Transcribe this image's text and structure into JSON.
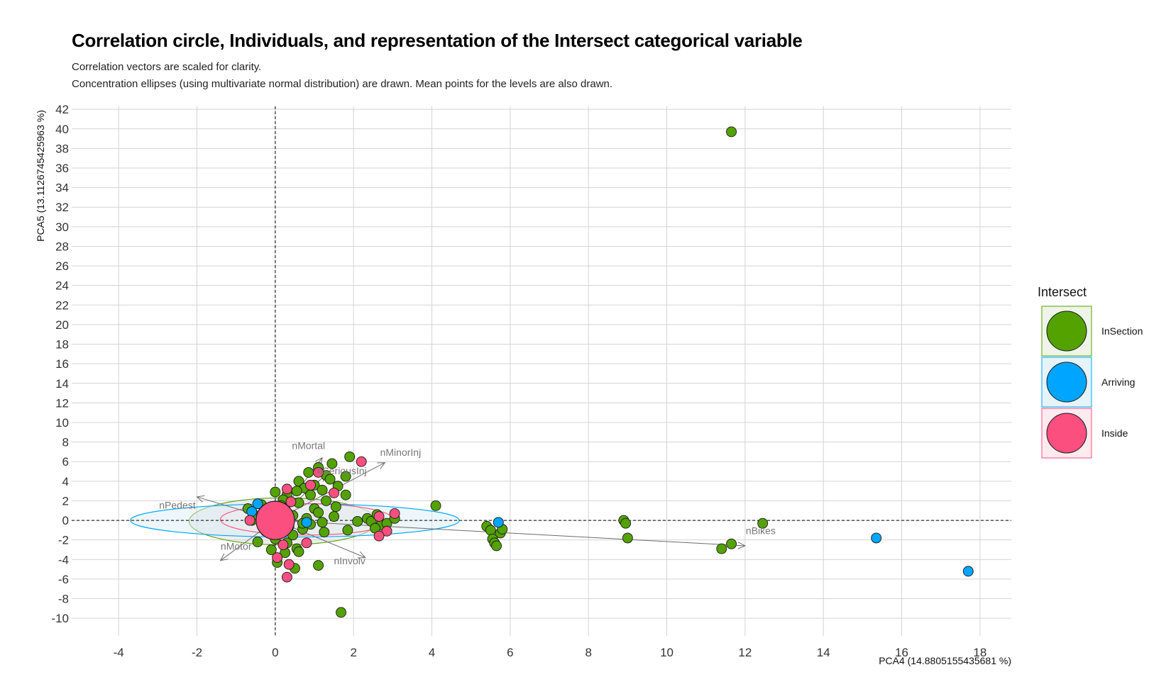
{
  "title": "Correlation circle, Individuals, and representation of the Intersect categorical variable",
  "subtitle_lines": [
    "Correlation vectors are scaled for clarity.",
    "Concentration ellipses (using multivariate normal distribution) are drawn. Mean points for the levels are also drawn."
  ],
  "chart_data": {
    "type": "scatter",
    "xlabel": "PCA4 (14.8805155435681 %)",
    "ylabel": "PCA5 (13.1126745425963 %)",
    "xlim": [
      -5.2,
      18.8
    ],
    "ylim": [
      -11.8,
      42.3
    ],
    "x_ticks": [
      -4,
      -2,
      0,
      2,
      4,
      6,
      8,
      10,
      12,
      14,
      16,
      18
    ],
    "y_ticks": [
      -10,
      -8,
      -6,
      -4,
      -2,
      0,
      2,
      4,
      6,
      8,
      10,
      12,
      14,
      16,
      18,
      20,
      22,
      24,
      26,
      28,
      30,
      32,
      34,
      36,
      38,
      40,
      42
    ],
    "grid": true,
    "reference_lines": {
      "x": 0,
      "y": 0,
      "style": "dashed"
    },
    "legend": {
      "title": "Intersect",
      "position": "right",
      "entries": [
        {
          "name": "InSection",
          "color": "#54A200"
        },
        {
          "name": "Arriving",
          "color": "#00A5FF"
        },
        {
          "name": "Inside",
          "color": "#FA4F7F"
        }
      ]
    },
    "series": [
      {
        "name": "InSection",
        "color": "#54A200",
        "points": [
          [
            11.65,
            39.7
          ],
          [
            1.9,
            6.5
          ],
          [
            1.45,
            5.8
          ],
          [
            1.1,
            5.4
          ],
          [
            1.8,
            4.5
          ],
          [
            0.85,
            4.9
          ],
          [
            1.3,
            4.6
          ],
          [
            1.4,
            4.2
          ],
          [
            0.6,
            4.0
          ],
          [
            1.0,
            3.6
          ],
          [
            1.8,
            2.6
          ],
          [
            1.2,
            3.1
          ],
          [
            0.75,
            3.3
          ],
          [
            0.55,
            3.0
          ],
          [
            0.3,
            2.6
          ],
          [
            0.9,
            2.6
          ],
          [
            1.3,
            2.0
          ],
          [
            1.55,
            1.4
          ],
          [
            0.2,
            2.1
          ],
          [
            0.6,
            1.8
          ],
          [
            1.0,
            1.2
          ],
          [
            1.5,
            0.4
          ],
          [
            0.0,
            2.9
          ],
          [
            -0.35,
            1.6
          ],
          [
            -0.7,
            1.2
          ],
          [
            -0.6,
            0.0
          ],
          [
            0.05,
            1.0
          ],
          [
            0.45,
            0.5
          ],
          [
            0.8,
            0.2
          ],
          [
            1.2,
            -0.2
          ],
          [
            2.1,
            -0.1
          ],
          [
            2.35,
            0.2
          ],
          [
            2.45,
            -0.1
          ],
          [
            2.6,
            0.6
          ],
          [
            2.7,
            -0.5
          ],
          [
            2.85,
            -0.3
          ],
          [
            3.05,
            0.2
          ],
          [
            2.55,
            -0.8
          ],
          [
            1.85,
            -1.0
          ],
          [
            1.25,
            -1.2
          ],
          [
            0.7,
            -0.9
          ],
          [
            0.45,
            -1.5
          ],
          [
            0.0,
            -1.9
          ],
          [
            0.3,
            -2.3
          ],
          [
            0.55,
            -2.9
          ],
          [
            0.25,
            -3.3
          ],
          [
            0.05,
            -4.3
          ],
          [
            -0.25,
            -1.1
          ],
          [
            -0.45,
            -2.2
          ],
          [
            0.6,
            -3.2
          ],
          [
            0.9,
            -0.4
          ],
          [
            0.5,
            -4.9
          ],
          [
            1.1,
            -4.6
          ],
          [
            -0.1,
            -3.0
          ],
          [
            1.68,
            -9.4
          ],
          [
            4.1,
            1.5
          ],
          [
            5.4,
            -0.6
          ],
          [
            5.5,
            -1.0
          ],
          [
            5.55,
            -1.9
          ],
          [
            5.6,
            -2.3
          ],
          [
            5.65,
            -2.6
          ],
          [
            5.75,
            -1.3
          ],
          [
            5.8,
            -0.9
          ],
          [
            8.9,
            0.0
          ],
          [
            8.95,
            -0.3
          ],
          [
            9.0,
            -1.8
          ],
          [
            11.4,
            -2.9
          ],
          [
            11.65,
            -2.4
          ],
          [
            12.45,
            -0.3
          ],
          [
            -0.55,
            0.6
          ],
          [
            0.35,
            -0.6
          ],
          [
            1.6,
            3.5
          ],
          [
            0.15,
            1.5
          ],
          [
            -0.3,
            0.2
          ],
          [
            1.1,
            0.8
          ],
          [
            0.7,
            -0.3
          ]
        ]
      },
      {
        "name": "Arriving",
        "color": "#00A5FF",
        "points": [
          [
            17.7,
            -5.2
          ],
          [
            15.35,
            -1.8
          ],
          [
            5.7,
            -0.2
          ],
          [
            -0.45,
            1.7
          ],
          [
            -0.6,
            0.9
          ],
          [
            0.8,
            -0.2
          ],
          [
            0.2,
            0.6
          ]
        ]
      },
      {
        "name": "Inside",
        "color": "#FA4F7F",
        "points": [
          [
            2.2,
            6.0
          ],
          [
            1.1,
            4.9
          ],
          [
            1.5,
            2.8
          ],
          [
            0.3,
            3.2
          ],
          [
            0.9,
            3.6
          ],
          [
            2.65,
            0.4
          ],
          [
            3.05,
            0.7
          ],
          [
            2.85,
            -1.1
          ],
          [
            2.65,
            -1.6
          ],
          [
            0.8,
            -2.3
          ],
          [
            0.35,
            -4.5
          ],
          [
            0.3,
            -5.8
          ],
          [
            0.05,
            -3.8
          ],
          [
            -0.65,
            0.0
          ],
          [
            0.4,
            1.9
          ],
          [
            0.2,
            -2.5
          ]
        ]
      }
    ],
    "level_means": [
      {
        "name": "InSection",
        "x": 0.0,
        "y": 0.0
      },
      {
        "name": "Arriving",
        "x": 0.0,
        "y": 0.0
      },
      {
        "name": "Inside",
        "x": 0.0,
        "y": 0.0
      }
    ],
    "ellipses": [
      {
        "name": "InSection",
        "cx": 0.2,
        "cy": -0.1,
        "rx": 2.4,
        "ry": 2.4,
        "color": "#54A200",
        "fill": "#D9D9D9"
      },
      {
        "name": "Arriving",
        "cx": 0.5,
        "cy": 0.0,
        "rx": 4.2,
        "ry": 1.7,
        "color": "#00A5FF",
        "fill": "#D6EEF7"
      },
      {
        "name": "Inside",
        "cx": 0.8,
        "cy": 0.1,
        "rx": 2.2,
        "ry": 1.6,
        "color": "#FA4F7F",
        "fill": "#EEEEEE"
      }
    ],
    "vectors": [
      {
        "name": "nMortal",
        "x": 1.2,
        "y": 6.4
      },
      {
        "name": "nMinorInj",
        "x": 2.8,
        "y": 5.9
      },
      {
        "name": "nSeriousInj",
        "x": 1.3,
        "y": 4.7
      },
      {
        "name": "nPedest",
        "x": -2.0,
        "y": 2.4
      },
      {
        "name": "nMotor",
        "x": -1.4,
        "y": -4.1
      },
      {
        "name": "nInvolv",
        "x": 2.3,
        "y": -3.8
      },
      {
        "name": "nBikes",
        "x": 12.0,
        "y": -2.6
      }
    ],
    "vector_labels": [
      {
        "text": "nMortal",
        "x": 0.85,
        "y": 7.3
      },
      {
        "text": "nMinorInj",
        "x": 3.2,
        "y": 6.6
      },
      {
        "text": "nSeriousInj",
        "x": 1.7,
        "y": 4.7
      },
      {
        "text": "nPedest",
        "x": -2.5,
        "y": 1.2
      },
      {
        "text": "nMotor",
        "x": -1.0,
        "y": -3.0
      },
      {
        "text": "nInvolv",
        "x": 1.9,
        "y": -4.5
      },
      {
        "text": "nBikes",
        "x": 12.4,
        "y": -1.4
      }
    ]
  }
}
